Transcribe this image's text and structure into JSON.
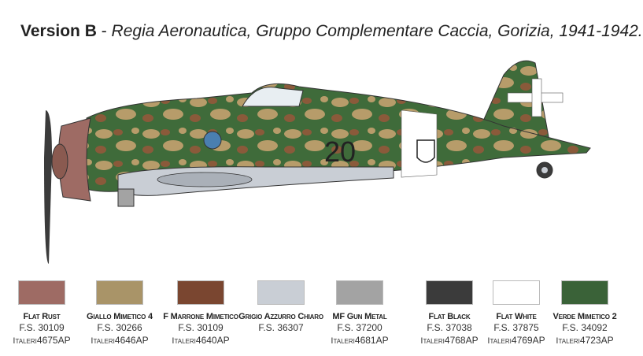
{
  "title": {
    "version": "Version B",
    "separator": " - ",
    "description": "Regia Aeronautica, Gruppo Complementare Caccia, Gorizia, 1941-1942."
  },
  "aircraft": {
    "code": "20",
    "camouflage_colors": [
      "#3f6b3a",
      "#b79c6a",
      "#7a4a2e"
    ]
  },
  "swatches": [
    {
      "name": "Flat Rust",
      "fs": "F.S. 30109",
      "brand": "Italeri",
      "code": "4675AP",
      "color": "#9e6b64"
    },
    {
      "name": "Giallo Mimetico 4",
      "fs": "F.S. 30266",
      "brand": "Italeri",
      "code": "4646AP",
      "color": "#a99468"
    },
    {
      "name": "F Marrone Mimetico",
      "fs": "F.S. 30109",
      "brand": "Italeri",
      "code": "4640AP",
      "color": "#7a4630"
    },
    {
      "name": "Grigio Azzurro Chiaro",
      "fs": "F.S. 36307",
      "brand": "",
      "code": "",
      "color": "#c9ced5"
    },
    {
      "name": "MF Gun Metal",
      "fs": "F.S. 37200",
      "brand": "Italeri",
      "code": "4681AP",
      "color": "#a3a3a3"
    },
    {
      "name": "Flat Black",
      "fs": "F.S. 37038",
      "brand": "Italeri",
      "code": "4768AP",
      "color": "#3b3b3b"
    },
    {
      "name": "Flat White",
      "fs": "F.S. 37875",
      "brand": "Italeri",
      "code": "4769AP",
      "color": "#ffffff"
    },
    {
      "name": "Verde Mimetico 2",
      "fs": "F.S. 34092",
      "brand": "Italeri",
      "code": "4723AP",
      "color": "#3a6238"
    }
  ]
}
